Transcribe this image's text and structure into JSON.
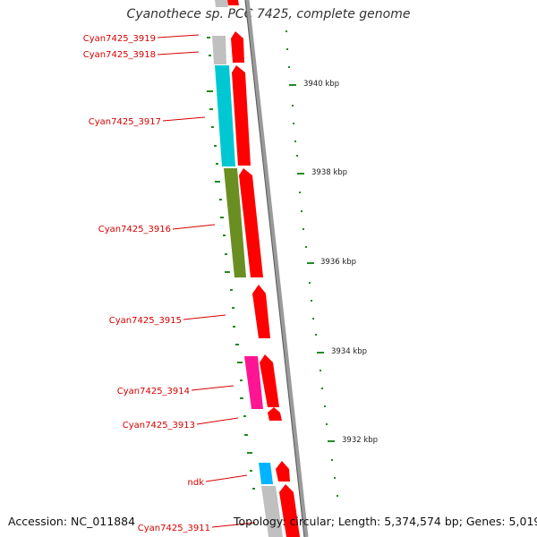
{
  "title": "Cyanothece sp. PCC 7425, complete genome",
  "genes": [
    {
      "label": "Cyan7425_3919",
      "strand": "+",
      "colors": [
        "#ff0000"
      ]
    },
    {
      "label": "Cyan7425_3918",
      "strand": "+",
      "colors": [
        "#c0c0c0",
        "#ff0000"
      ]
    },
    {
      "label": "Cyan7425_3917",
      "strand": "+",
      "colors": [
        "#00c8d2",
        "#ff0000"
      ]
    },
    {
      "label": "Cyan7425_3916",
      "strand": "+",
      "colors": [
        "#6b8e23",
        "#ff0000"
      ]
    },
    {
      "label": "Cyan7425_3915",
      "strand": "+",
      "colors": [
        "#ff0000"
      ]
    },
    {
      "label": "Cyan7425_3914",
      "strand": "+",
      "colors": [
        "#ff1493",
        "#ff0000"
      ]
    },
    {
      "label": "Cyan7425_3913",
      "strand": "+",
      "colors": [
        "#ff0000"
      ]
    },
    {
      "label": "ndk",
      "strand": "+",
      "colors": [
        "#00b4ff",
        "#ff0000"
      ]
    },
    {
      "label": "Cyan7425_3911",
      "strand": "+",
      "colors": [
        "#c0c0c0",
        "#ff0000"
      ]
    }
  ],
  "scale_ticks": [
    "3940 kbp",
    "3938 kbp",
    "3936 kbp",
    "3934 kbp",
    "3932 kbp"
  ],
  "footer": {
    "accession": "Accession: NC_011884",
    "summary": "Topology: circular; Length: 5,374,574 bp; Genes: 5,019"
  },
  "colors": {
    "label_red": "#d60000",
    "gc_dash": "#228b22",
    "backbone": "#808080"
  }
}
